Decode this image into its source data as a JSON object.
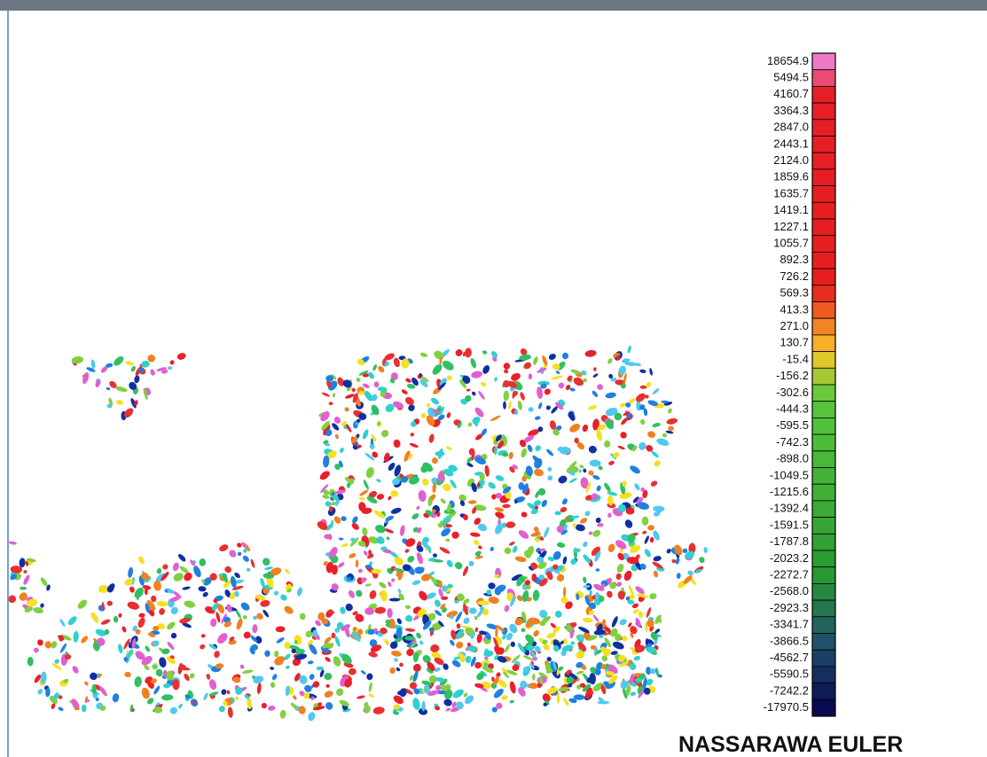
{
  "title": "NASSARAWA EULER",
  "legend": {
    "labels": [
      "18654.9",
      "5494.5",
      "4160.7",
      "3364.3",
      "2847.0",
      "2443.1",
      "2124.0",
      "1859.6",
      "1635.7",
      "1419.1",
      "1227.1",
      "1055.7",
      "892.3",
      "726.2",
      "569.3",
      "413.3",
      "271.0",
      "130.7",
      "-15.4",
      "-156.2",
      "-302.6",
      "-444.3",
      "-595.5",
      "-742.3",
      "-898.0",
      "-1049.5",
      "-1215.6",
      "-1392.4",
      "-1591.5",
      "-1787.8",
      "-2023.2",
      "-2272.7",
      "-2568.0",
      "-2923.3",
      "-3341.7",
      "-3866.5",
      "-4562.7",
      "-5590.5",
      "-7242.2",
      "-17970.5"
    ]
  }
}
